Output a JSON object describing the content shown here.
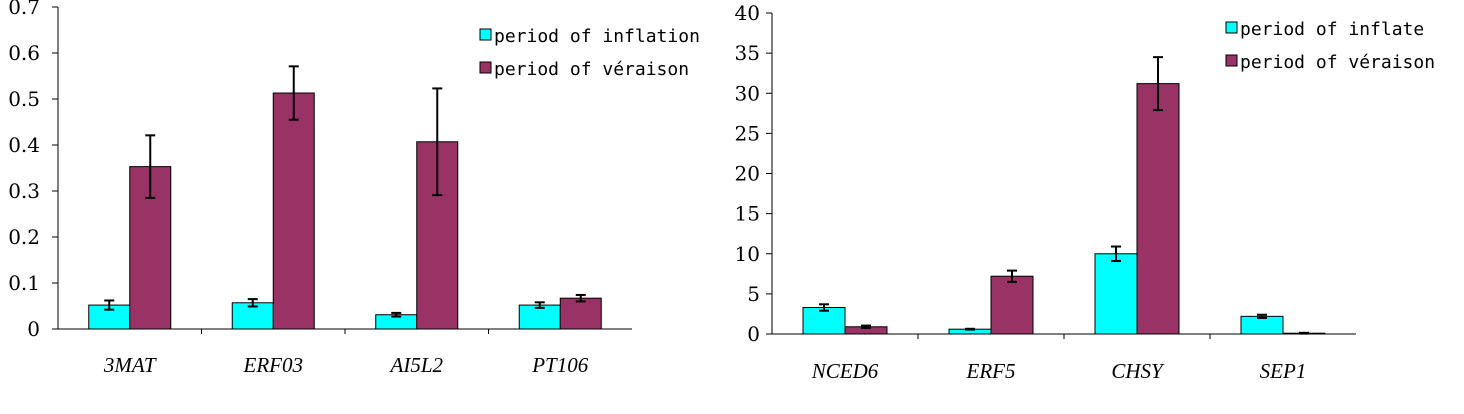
{
  "chart_data": [
    {
      "type": "bar",
      "categories": [
        "3MAT",
        "ERF03",
        "AI5L2",
        "PT106"
      ],
      "ylim": [
        0,
        0.7
      ],
      "yticks": [
        "0",
        "0.1",
        "0.2",
        "0.3",
        "0.4",
        "0.5",
        "0.6",
        "0.7"
      ],
      "yticks_values": [
        0,
        0.1,
        0.2,
        0.3,
        0.4,
        0.5,
        0.6,
        0.7
      ],
      "grid": false,
      "legend_position": "top-right",
      "series": [
        {
          "name": "period of inflation",
          "color": "#00ffff",
          "values": [
            0.052,
            0.057,
            0.031,
            0.052
          ],
          "errors": [
            0.01,
            0.008,
            0.004,
            0.006
          ]
        },
        {
          "name": "period of véraison",
          "color": "#993366",
          "values": [
            0.353,
            0.513,
            0.407,
            0.067
          ],
          "errors": [
            0.068,
            0.058,
            0.116,
            0.007
          ]
        }
      ]
    },
    {
      "type": "bar",
      "categories": [
        "NCED6",
        "ERF5",
        "CHSY",
        "SEP1"
      ],
      "ylim": [
        0,
        40
      ],
      "yticks": [
        "0",
        "5",
        "10",
        "15",
        "20",
        "25",
        "30",
        "35",
        "40"
      ],
      "yticks_values": [
        0,
        5,
        10,
        15,
        20,
        25,
        30,
        35,
        40
      ],
      "grid": false,
      "legend_position": "top-right",
      "series": [
        {
          "name": "period of inflate",
          "color": "#00ffff",
          "values": [
            3.3,
            0.6,
            10.0,
            2.2
          ],
          "errors": [
            0.4,
            0.05,
            0.9,
            0.2
          ]
        },
        {
          "name": "period of véraison",
          "color": "#993366",
          "values": [
            0.9,
            7.2,
            31.2,
            0.1
          ],
          "errors": [
            0.15,
            0.7,
            3.3,
            0.05
          ]
        }
      ]
    }
  ]
}
